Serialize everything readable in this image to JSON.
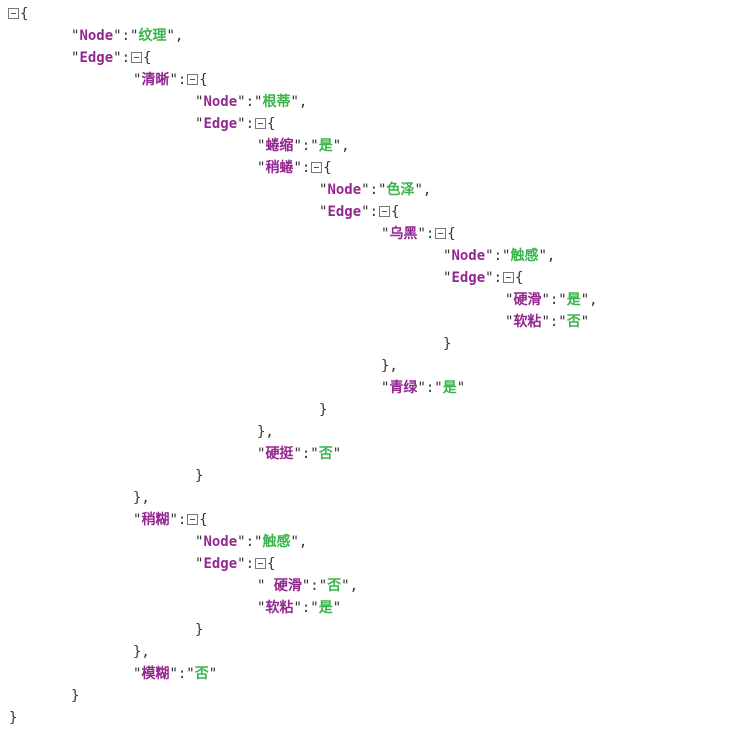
{
  "tree": {
    "type": "object",
    "entries": [
      {
        "key": "Node",
        "value": "纹理"
      },
      {
        "key": "Edge",
        "value": {
          "type": "object",
          "entries": [
            {
              "key": "清晰",
              "value": {
                "type": "object",
                "entries": [
                  {
                    "key": "Node",
                    "value": "根蒂"
                  },
                  {
                    "key": "Edge",
                    "value": {
                      "type": "object",
                      "entries": [
                        {
                          "key": "蜷缩",
                          "value": "是"
                        },
                        {
                          "key": "稍蜷",
                          "value": {
                            "type": "object",
                            "entries": [
                              {
                                "key": "Node",
                                "value": "色泽"
                              },
                              {
                                "key": "Edge",
                                "value": {
                                  "type": "object",
                                  "entries": [
                                    {
                                      "key": "乌黑",
                                      "value": {
                                        "type": "object",
                                        "entries": [
                                          {
                                            "key": "Node",
                                            "value": "触感"
                                          },
                                          {
                                            "key": "Edge",
                                            "value": {
                                              "type": "object",
                                              "entries": [
                                                {
                                                  "key": "硬滑",
                                                  "value": "是"
                                                },
                                                {
                                                  "key": "软粘",
                                                  "value": "否"
                                                }
                                              ]
                                            }
                                          }
                                        ]
                                      }
                                    },
                                    {
                                      "key": "青绿",
                                      "value": "是"
                                    }
                                  ]
                                }
                              }
                            ]
                          }
                        },
                        {
                          "key": "硬挺",
                          "value": "否"
                        }
                      ]
                    }
                  }
                ]
              }
            },
            {
              "key": "稍糊",
              "value": {
                "type": "object",
                "entries": [
                  {
                    "key": "Node",
                    "value": "触感"
                  },
                  {
                    "key": "Edge",
                    "value": {
                      "type": "object",
                      "entries": [
                        {
                          "key": " 硬滑",
                          "value": "否"
                        },
                        {
                          "key": "软粘",
                          "value": "是"
                        }
                      ]
                    }
                  }
                ]
              }
            },
            {
              "key": "模糊",
              "value": "否"
            }
          ]
        }
      }
    ]
  }
}
